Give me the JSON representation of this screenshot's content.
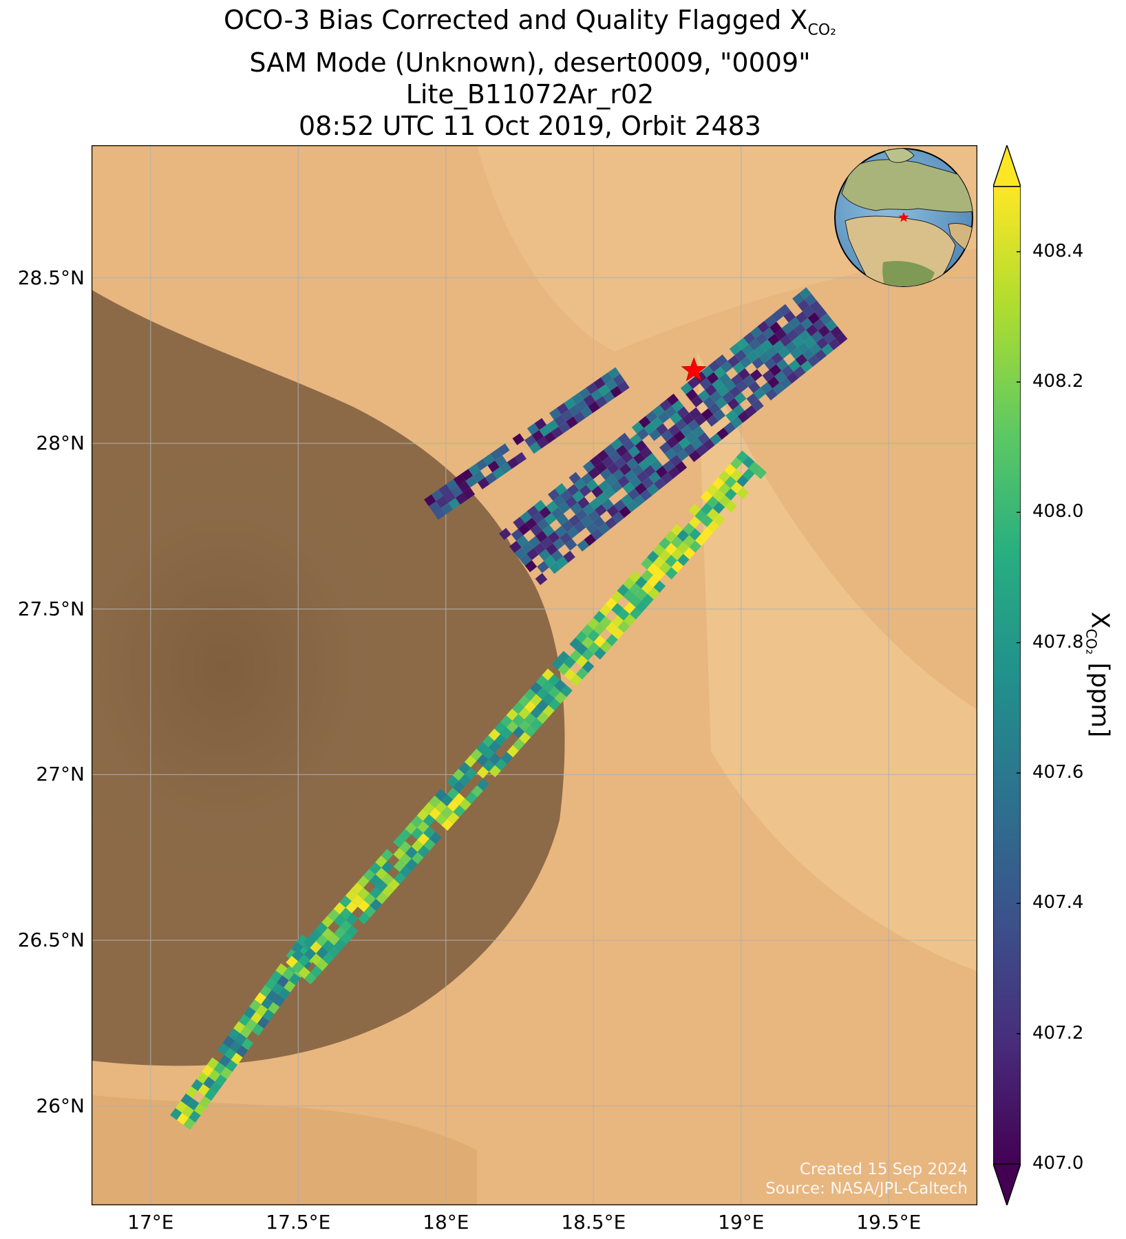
{
  "title": {
    "line1_prefix": "OCO-3 Bias Corrected and Quality Flagged X",
    "line1_sub": "CO₂",
    "line2": "SAM Mode (Unknown), desert0009, \"0009\"",
    "line3": "Lite_B11072Ar_r02",
    "line4": "08:52 UTC 11 Oct 2019, Orbit 2483"
  },
  "map": {
    "lon_range": [
      16.8,
      19.8
    ],
    "lat_range": [
      25.7,
      28.9
    ],
    "x_ticks": [
      {
        "value": 17.0,
        "label": "17°E"
      },
      {
        "value": 17.5,
        "label": "17.5°E"
      },
      {
        "value": 18.0,
        "label": "18°E"
      },
      {
        "value": 18.5,
        "label": "18.5°E"
      },
      {
        "value": 19.0,
        "label": "19°E"
      },
      {
        "value": 19.5,
        "label": "19.5°E"
      }
    ],
    "y_ticks": [
      {
        "value": 26.0,
        "label": "26°N"
      },
      {
        "value": 26.5,
        "label": "26.5°N"
      },
      {
        "value": 27.0,
        "label": "27°N"
      },
      {
        "value": 27.5,
        "label": "27.5°N"
      },
      {
        "value": 28.0,
        "label": "28°N"
      },
      {
        "value": 28.5,
        "label": "28.5°N"
      }
    ],
    "grid": true,
    "target_marker": {
      "lon": 18.84,
      "lat": 28.22,
      "color": "#ff0000",
      "shape": "star"
    },
    "basemap": "satellite desert imagery",
    "inset": "globe centered on Africa/Europe with red star marker"
  },
  "credit": {
    "line1": "Created 15 Sep 2024",
    "line2": "Source: NASA/JPL-Caltech"
  },
  "colorbar": {
    "colormap": "viridis",
    "min": 407.0,
    "max": 408.5,
    "extend": "both",
    "ticks": [
      "407.0",
      "407.2",
      "407.4",
      "407.6",
      "407.8",
      "408.0",
      "408.2",
      "408.4"
    ],
    "label_prefix": "X",
    "label_sub": "CO₂",
    "label_suffix": " [ppm]"
  },
  "chart_data": {
    "type": "heatmap",
    "variable": "XCO2",
    "units": "ppm",
    "swaths": [
      {
        "start": [
          17.1,
          25.95
        ],
        "end": [
          17.55,
          26.5
        ],
        "width": 0.09,
        "value_range": [
          407.5,
          408.5
        ]
      },
      {
        "start": [
          17.5,
          26.4
        ],
        "end": [
          18.4,
          27.3
        ],
        "width": 0.1,
        "value_range": [
          407.6,
          408.5
        ]
      },
      {
        "start": [
          18.4,
          27.3
        ],
        "end": [
          19.05,
          27.95
        ],
        "width": 0.1,
        "value_range": [
          407.7,
          408.6
        ]
      },
      {
        "start": [
          17.95,
          27.8
        ],
        "end": [
          18.6,
          28.2
        ],
        "width": 0.09,
        "value_range": [
          407.0,
          407.8
        ]
      },
      {
        "start": [
          18.25,
          27.65
        ],
        "end": [
          19.3,
          28.4
        ],
        "width": 0.22,
        "value_range": [
          407.0,
          407.8
        ]
      }
    ]
  }
}
